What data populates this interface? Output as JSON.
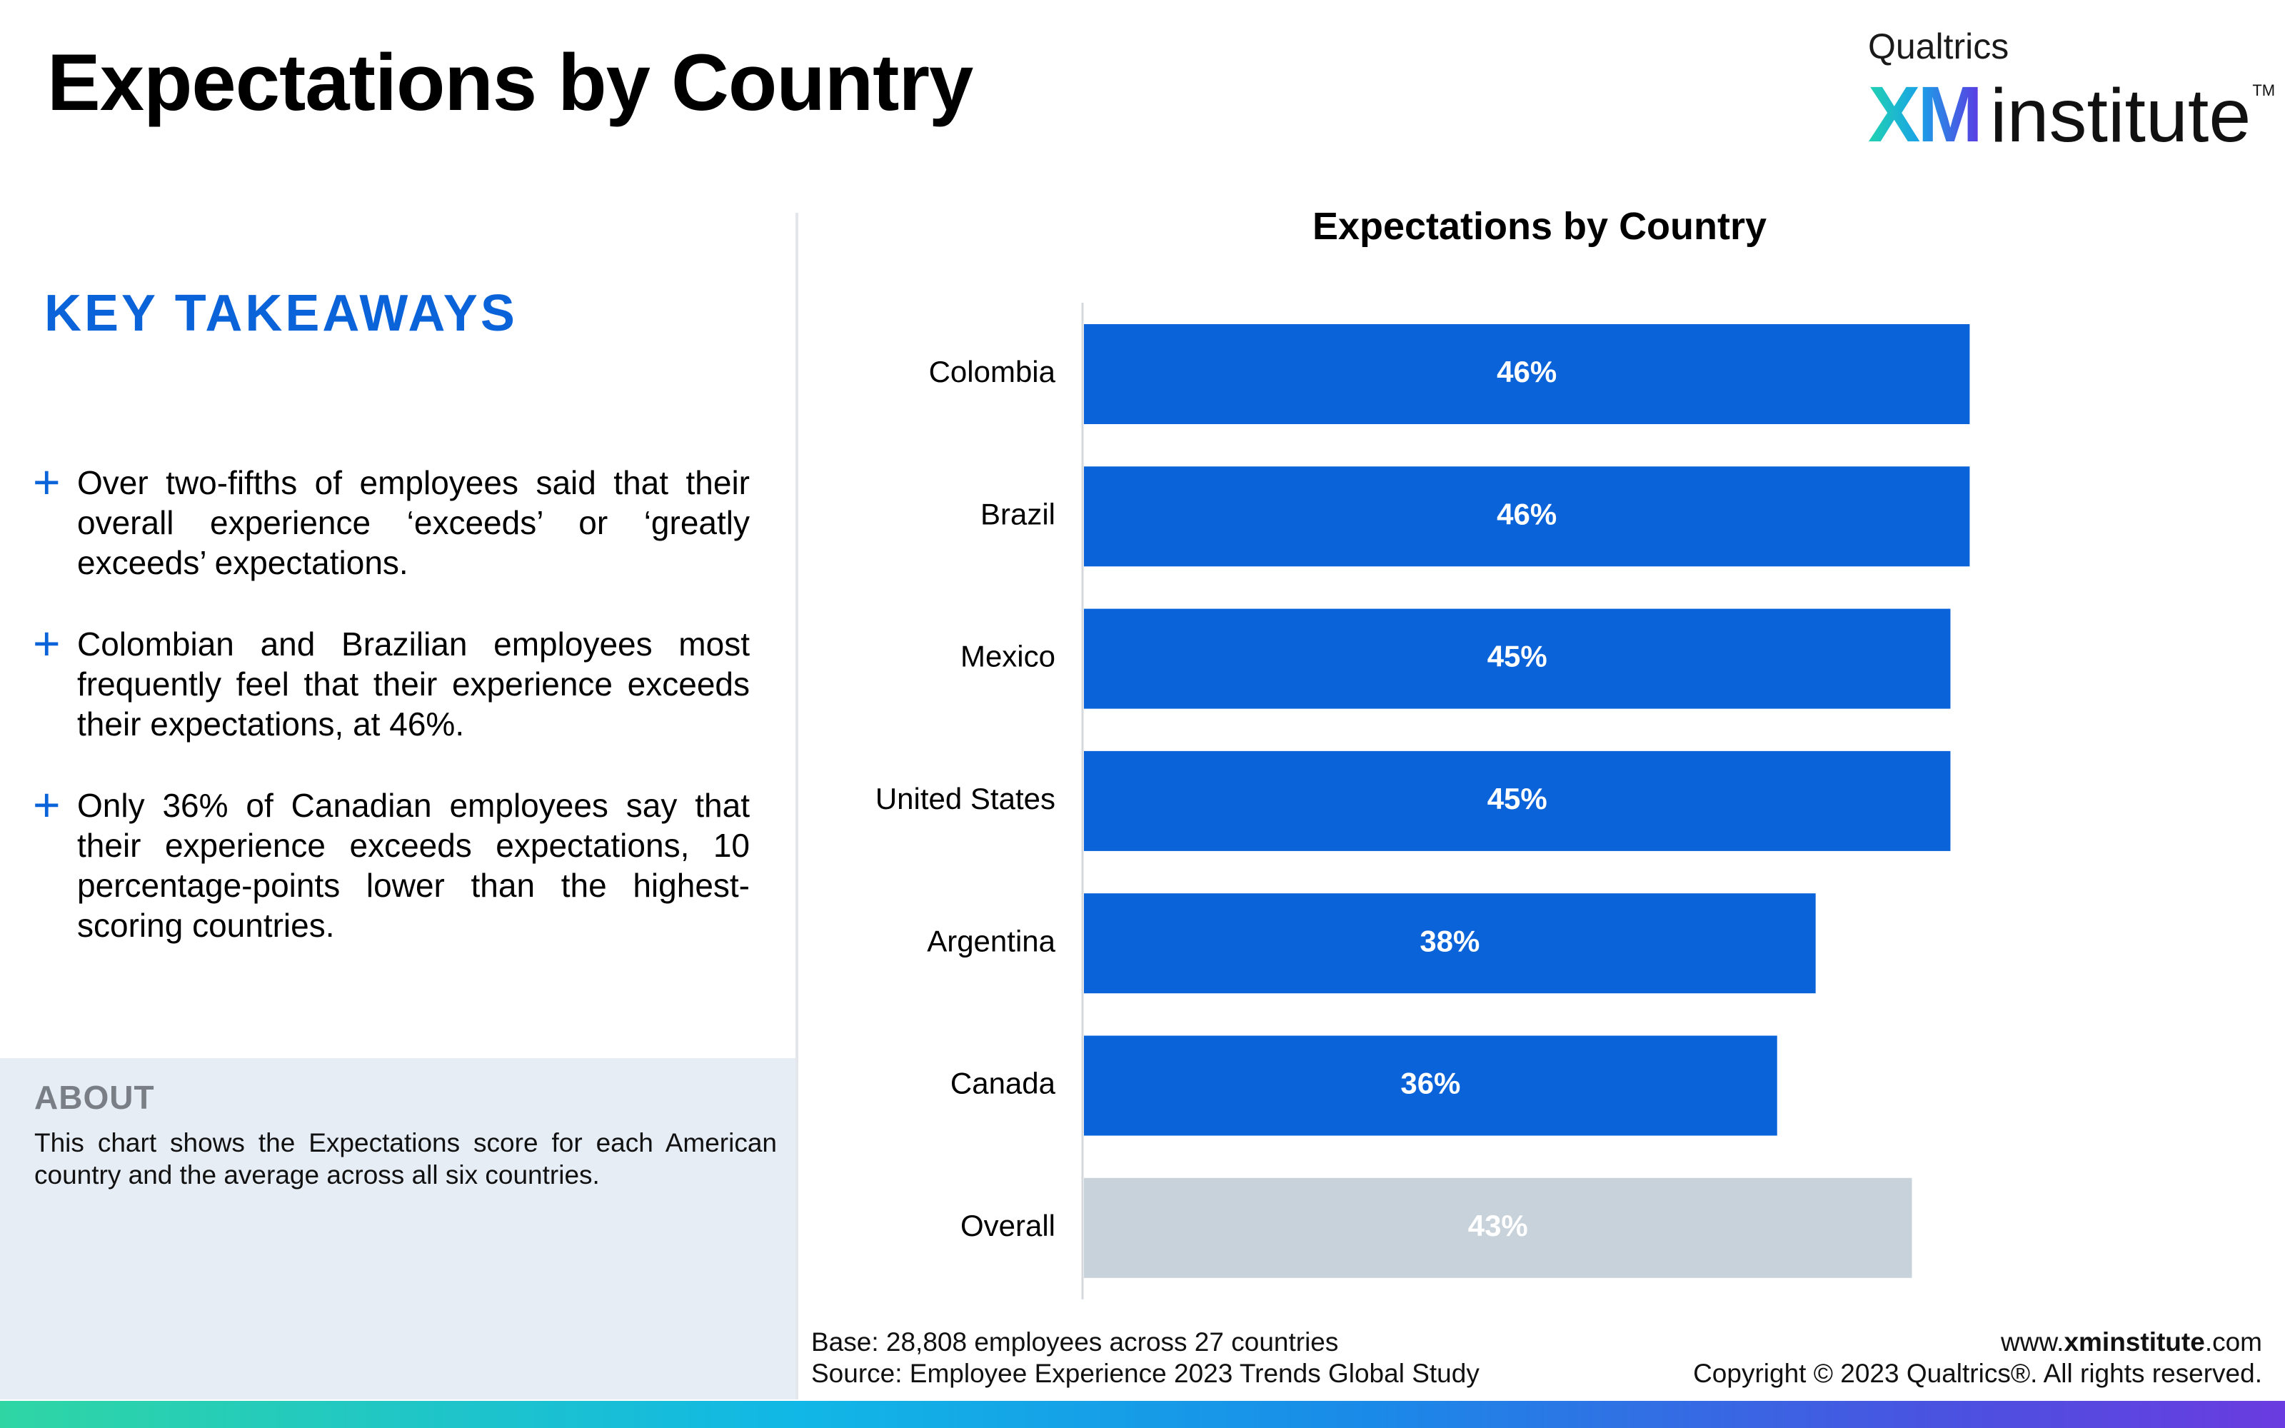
{
  "header": {
    "title": "Expectations by Country"
  },
  "logo": {
    "qualtrics": "Qualtrics",
    "xm": "XM",
    "institute": "institute",
    "tm": "TM"
  },
  "takeaways": {
    "heading": "KEY TAKEAWAYS",
    "plus_symbol": "+",
    "items": [
      "Over two-fifths of employees said that their overall experience ‘exceeds’ or ‘greatly exceeds’ expectations.",
      "Colombian and Brazilian employees most frequently feel that their experience exceeds their expectations, at 46%.",
      "Only 36% of Canadian employees say that their experience exceeds expectations, 10 percentage-points lower than the highest-scoring countries."
    ]
  },
  "about": {
    "heading": "ABOUT",
    "text": "This chart shows the Expectations score for each American country and the average across all six countries."
  },
  "chart_data": {
    "type": "bar",
    "orientation": "horizontal",
    "title": "Expectations by Country",
    "categories": [
      "Colombia",
      "Brazil",
      "Mexico",
      "United States",
      "Argentina",
      "Canada",
      "Overall"
    ],
    "values": [
      46,
      46,
      45,
      45,
      38,
      36,
      43
    ],
    "value_labels": [
      "46%",
      "46%",
      "45%",
      "45%",
      "38%",
      "36%",
      "43%"
    ],
    "xlim": [
      0,
      58
    ],
    "colors": {
      "bar": "#0b63d9",
      "overall_bar": "#c8d2da",
      "axis": "#d4d8dc"
    },
    "grid": false
  },
  "footer": {
    "base": "Base: 28,808 employees across 27 countries",
    "source": "Source: Employee Experience 2023 Trends Global Study",
    "website_prefix": "www.",
    "website_bold": "xminstitute",
    "website_suffix": ".com",
    "copyright": "Copyright © 2023 Qualtrics®. All rights reserved."
  }
}
